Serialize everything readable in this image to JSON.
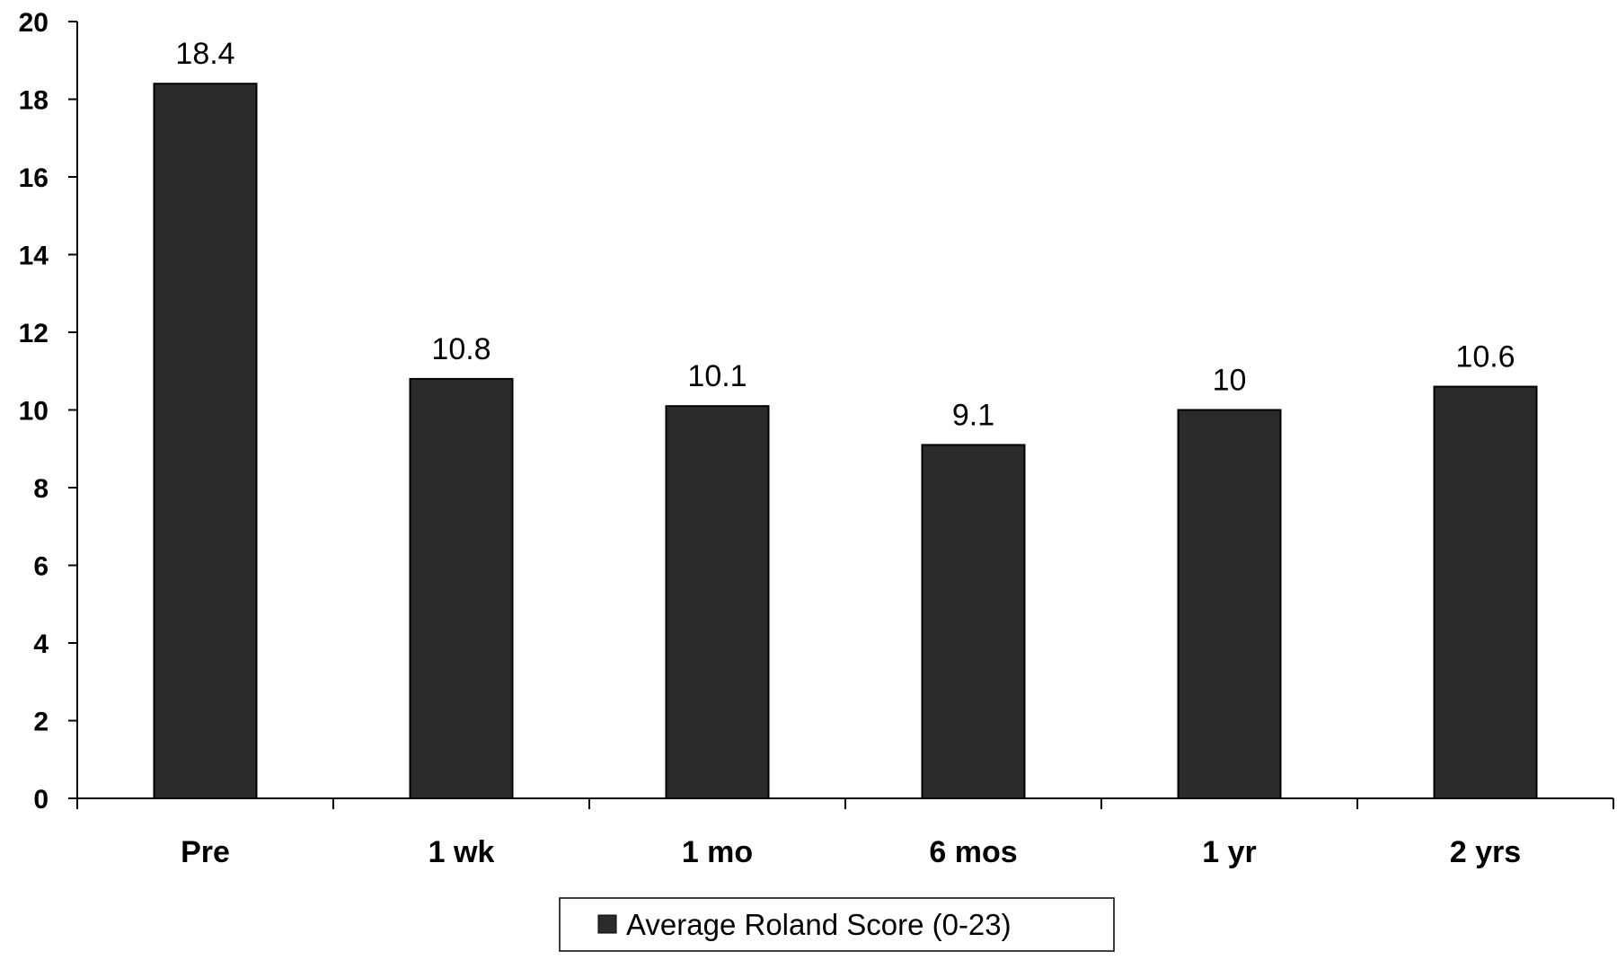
{
  "chart_data": {
    "type": "bar",
    "categories": [
      "Pre",
      "1 wk",
      "1 mo",
      "6 mos",
      "1 yr",
      "2 yrs"
    ],
    "series": [
      {
        "name": "Average Roland Score (0-23)",
        "values": [
          18.4,
          10.8,
          10.1,
          9.1,
          10,
          10.6
        ],
        "data_labels": [
          "18.4",
          "10.8",
          "10.1",
          "9.1",
          "10",
          "10.6"
        ],
        "color": "#2b2b2b"
      }
    ],
    "title": "",
    "xlabel": "",
    "ylabel": "",
    "ylim": [
      0,
      20
    ],
    "y_ticks": [
      "0",
      "2",
      "4",
      "6",
      "8",
      "10",
      "12",
      "14",
      "16",
      "18",
      "20"
    ],
    "grid": false,
    "legend_position": "bottom-center"
  }
}
